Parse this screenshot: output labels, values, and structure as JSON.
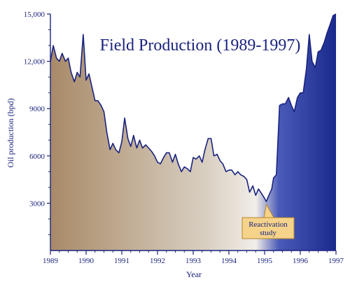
{
  "chart_data": {
    "type": "area",
    "title": "Field Production (1989-1997)",
    "xlabel": "Year",
    "ylabel": "Oil production (bpd)",
    "xlim": [
      1989,
      1997
    ],
    "ylim": [
      0,
      15000
    ],
    "x_ticks": [
      "1989",
      "1990",
      "1991",
      "1992",
      "1993",
      "1994",
      "1995",
      "1996",
      "1997"
    ],
    "y_ticks": [
      "3000",
      "6000",
      "9000",
      "12,000",
      "15,000"
    ],
    "grid": false,
    "colors": {
      "fill_start": "#a88a68",
      "fill_mid": "#d9d0c2",
      "fill_end": "#1a2a8c",
      "line": "#1a237e",
      "axis": "#1a237e",
      "callout_fill": "#f5d38a",
      "callout_border": "#b8862b"
    },
    "annotation": {
      "lines": [
        "Reactivation",
        "study"
      ],
      "x": 1995.05,
      "y": 3100
    },
    "series": [
      {
        "values": [
          [
            1989.0,
            12000
          ],
          [
            1989.08,
            13000
          ],
          [
            1989.17,
            12200
          ],
          [
            1989.25,
            12000
          ],
          [
            1989.33,
            12500
          ],
          [
            1989.42,
            12000
          ],
          [
            1989.5,
            12200
          ],
          [
            1989.58,
            11300
          ],
          [
            1989.67,
            10700
          ],
          [
            1989.75,
            11300
          ],
          [
            1989.83,
            11000
          ],
          [
            1989.92,
            13700
          ],
          [
            1990.0,
            10800
          ],
          [
            1990.08,
            11200
          ],
          [
            1990.17,
            10300
          ],
          [
            1990.25,
            9500
          ],
          [
            1990.33,
            9500
          ],
          [
            1990.42,
            9200
          ],
          [
            1990.5,
            8800
          ],
          [
            1990.58,
            7500
          ],
          [
            1990.67,
            6400
          ],
          [
            1990.75,
            6800
          ],
          [
            1990.83,
            6400
          ],
          [
            1990.92,
            6200
          ],
          [
            1991.0,
            6900
          ],
          [
            1991.08,
            8400
          ],
          [
            1991.17,
            7100
          ],
          [
            1991.25,
            6600
          ],
          [
            1991.33,
            7300
          ],
          [
            1991.42,
            6500
          ],
          [
            1991.5,
            7000
          ],
          [
            1991.58,
            6500
          ],
          [
            1991.67,
            6700
          ],
          [
            1991.75,
            6500
          ],
          [
            1991.83,
            6300
          ],
          [
            1991.92,
            6000
          ],
          [
            1992.0,
            5600
          ],
          [
            1992.08,
            5500
          ],
          [
            1992.17,
            5900
          ],
          [
            1992.25,
            6200
          ],
          [
            1992.33,
            6200
          ],
          [
            1992.42,
            5600
          ],
          [
            1992.5,
            6100
          ],
          [
            1992.58,
            5500
          ],
          [
            1992.67,
            5000
          ],
          [
            1992.75,
            5300
          ],
          [
            1992.83,
            5200
          ],
          [
            1992.92,
            5000
          ],
          [
            1993.0,
            5900
          ],
          [
            1993.08,
            5800
          ],
          [
            1993.17,
            6000
          ],
          [
            1993.25,
            5600
          ],
          [
            1993.33,
            6400
          ],
          [
            1993.42,
            7100
          ],
          [
            1993.5,
            7100
          ],
          [
            1993.58,
            6000
          ],
          [
            1993.67,
            6100
          ],
          [
            1993.75,
            5700
          ],
          [
            1993.83,
            5500
          ],
          [
            1993.92,
            5000
          ],
          [
            1994.0,
            5100
          ],
          [
            1994.08,
            5100
          ],
          [
            1994.17,
            4800
          ],
          [
            1994.25,
            5000
          ],
          [
            1994.33,
            4800
          ],
          [
            1994.42,
            4700
          ],
          [
            1994.5,
            4500
          ],
          [
            1994.58,
            3700
          ],
          [
            1994.67,
            4100
          ],
          [
            1994.75,
            3500
          ],
          [
            1994.83,
            3900
          ],
          [
            1994.92,
            3600
          ],
          [
            1995.0,
            3300
          ],
          [
            1995.05,
            3100
          ],
          [
            1995.1,
            3400
          ],
          [
            1995.2,
            3900
          ],
          [
            1995.25,
            4600
          ],
          [
            1995.33,
            4800
          ],
          [
            1995.42,
            9200
          ],
          [
            1995.5,
            9300
          ],
          [
            1995.58,
            9300
          ],
          [
            1995.67,
            9700
          ],
          [
            1995.75,
            9200
          ],
          [
            1995.83,
            8800
          ],
          [
            1995.92,
            9700
          ],
          [
            1996.0,
            10000
          ],
          [
            1996.08,
            10000
          ],
          [
            1996.17,
            11500
          ],
          [
            1996.25,
            13700
          ],
          [
            1996.33,
            12000
          ],
          [
            1996.42,
            11600
          ],
          [
            1996.5,
            12600
          ],
          [
            1996.58,
            12700
          ],
          [
            1996.67,
            13200
          ],
          [
            1996.75,
            13800
          ],
          [
            1996.83,
            14300
          ],
          [
            1996.92,
            14900
          ],
          [
            1997.0,
            15000
          ]
        ]
      }
    ]
  }
}
